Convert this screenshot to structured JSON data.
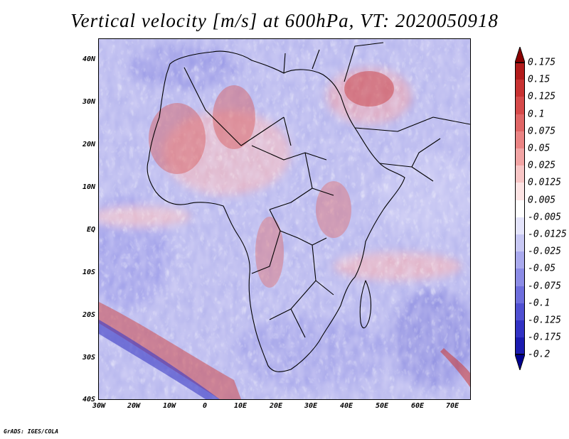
{
  "title": "Vertical velocity [m/s] at 600hPa, VT: 2020050918",
  "map": {
    "region": "Africa and surrounding seas",
    "lat_labels": [
      "40N",
      "30N",
      "20N",
      "10N",
      "EQ",
      "10S",
      "20S",
      "30S",
      "40S"
    ],
    "lon_labels": [
      "30W",
      "20W",
      "10W",
      "0",
      "10E",
      "20E",
      "30E",
      "40E",
      "50E",
      "60E",
      "70E"
    ],
    "extent": {
      "lon_min": -30,
      "lon_max": 75,
      "lat_min": -40,
      "lat_max": 45
    }
  },
  "colorbar": {
    "labels": [
      "0.175",
      "0.15",
      "0.125",
      "0.1",
      "0.075",
      "0.05",
      "0.025",
      "0.0125",
      "0.005",
      "-0.005",
      "-0.0125",
      "-0.025",
      "-0.05",
      "-0.075",
      "-0.1",
      "-0.125",
      "-0.175",
      "-0.2"
    ],
    "colors": [
      "#8b0000",
      "#b21b1b",
      "#c83232",
      "#d64a4a",
      "#e06666",
      "#ea8484",
      "#f2a5a5",
      "#f8c6c6",
      "#fde4e4",
      "#ffffff",
      "#e4e4fb",
      "#c8c8f4",
      "#aaaaee",
      "#8c8ce6",
      "#6e6edd",
      "#5050d2",
      "#3232c4",
      "#1b1bb0",
      "#000090"
    ]
  },
  "footer": "GrADS: IGES/COLA"
}
